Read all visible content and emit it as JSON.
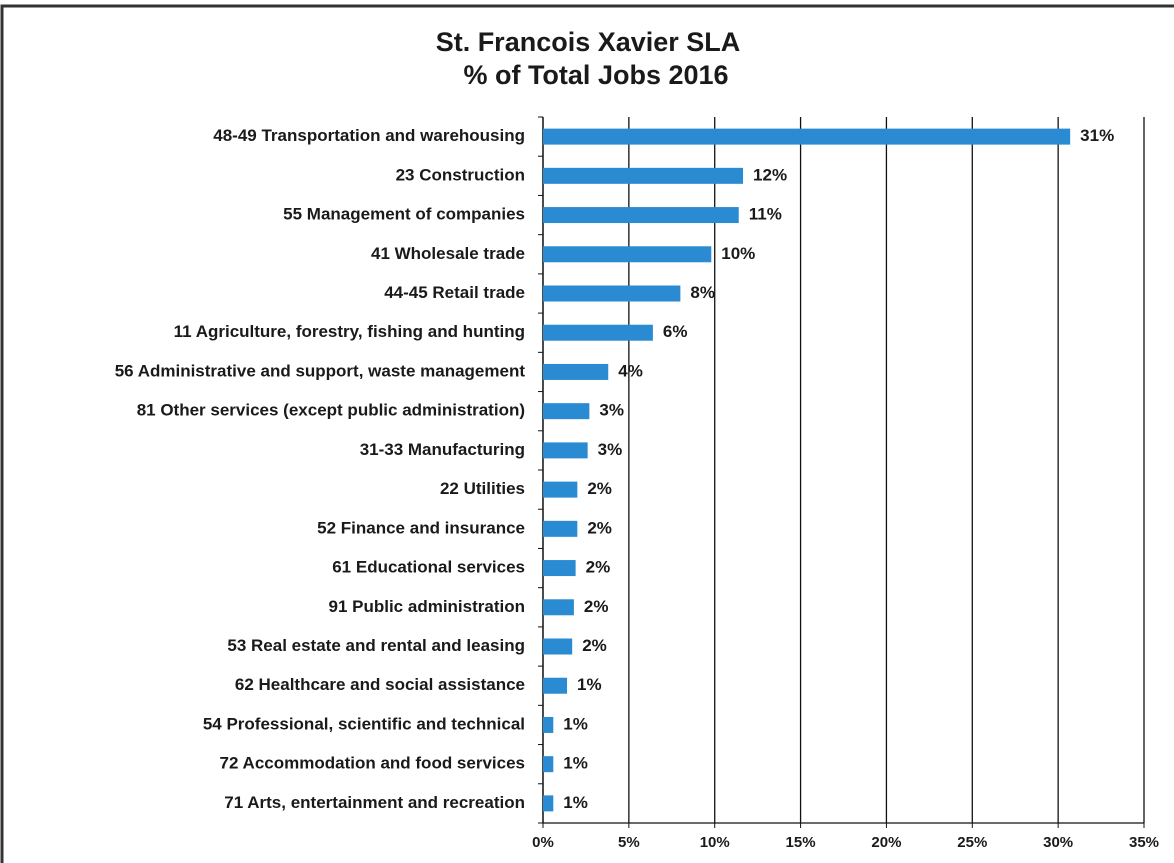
{
  "chart_data": {
    "type": "barh",
    "title": "St. Francois Xavier SLA",
    "subtitle": "% of Total Jobs 2016",
    "categories": [
      "48-49 Transportation and warehousing",
      "23 Construction",
      "55 Management of companies",
      "41 Wholesale trade",
      "44-45 Retail trade",
      "11 Agriculture, forestry, fishing and hunting",
      "56 Administrative and support, waste management",
      "81 Other services (except public administration)",
      "31-33 Manufacturing",
      "22 Utilities",
      "52 Finance and insurance",
      "61 Educational services",
      "91 Public administration",
      "53 Real estate and rental and leasing",
      "62 Healthcare and social assistance",
      "54 Professional, scientific and technical",
      "72 Accommodation and food services",
      "71 Arts, entertainment and recreation"
    ],
    "values": [
      30.7,
      11.65,
      11.4,
      9.8,
      8.0,
      6.4,
      3.8,
      2.7,
      2.6,
      2.0,
      2.0,
      1.9,
      1.8,
      1.7,
      1.4,
      0.6,
      0.6,
      0.6
    ],
    "value_labels": [
      "31%",
      "12%",
      "11%",
      "10%",
      "8%",
      "6%",
      "4%",
      "3%",
      "3%",
      "2%",
      "2%",
      "2%",
      "2%",
      "2%",
      "1%",
      "1%",
      "1%",
      "1%"
    ],
    "color": "#2a8bd2",
    "xlim": [
      0,
      35
    ],
    "xticks": [
      {
        "value": 0,
        "label": "0%"
      },
      {
        "value": 5,
        "label": "5%"
      },
      {
        "value": 10,
        "label": "10%"
      },
      {
        "value": 15,
        "label": "15%"
      },
      {
        "value": 20,
        "label": "20%"
      },
      {
        "value": 25,
        "label": "25%"
      },
      {
        "value": 30,
        "label": "30%"
      },
      {
        "value": 35,
        "label": "35%"
      }
    ],
    "grid": true
  }
}
